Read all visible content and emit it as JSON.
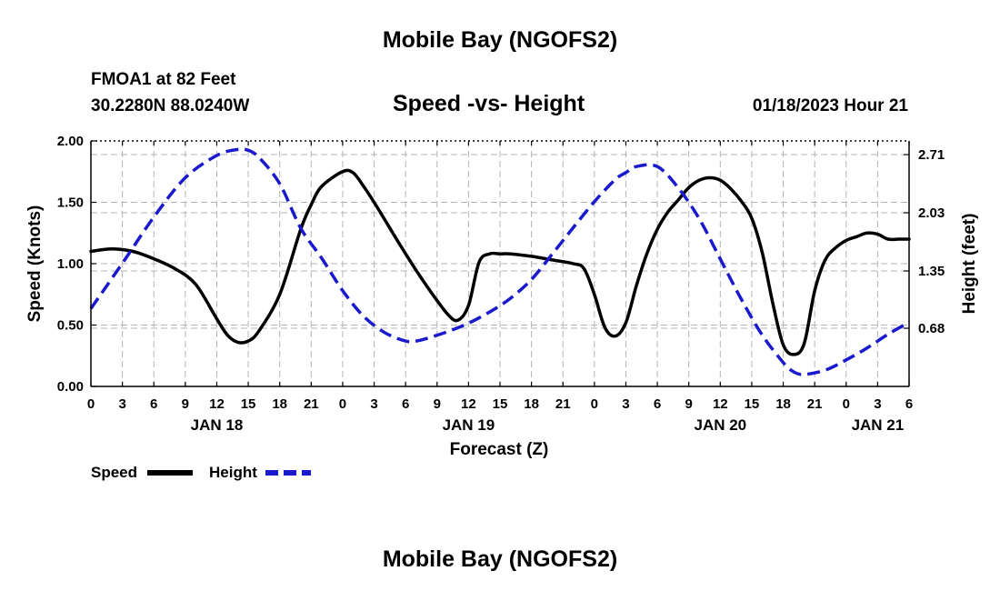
{
  "page_title": "Mobile Bay (NGOFS2)",
  "footer_title": "Mobile Bay (NGOFS2)",
  "station": "FMOA1 at 82 Feet",
  "coordinates": "30.2280N  88.0240W",
  "issued": "01/18/2023 Hour 21",
  "colors": {
    "speed": "#000000",
    "height": "#1a1acc",
    "grid": "#b4b4b4"
  },
  "chart_data": {
    "type": "line",
    "title": "Speed -vs- Height",
    "xlabel": "Forecast (Z)",
    "ylabel_left": "Speed (Knots)",
    "ylabel_right": "Height (feet)",
    "x_range": [
      0,
      78
    ],
    "x_tick_step": 3,
    "x_tick_labels": [
      "0",
      "3",
      "6",
      "9",
      "12",
      "15",
      "18",
      "21",
      "0",
      "3",
      "6",
      "9",
      "12",
      "15",
      "18",
      "21",
      "0",
      "3",
      "6",
      "9",
      "12",
      "15",
      "18",
      "21",
      "0",
      "3",
      "6"
    ],
    "date_labels": [
      {
        "label": "JAN 18",
        "hour": 12
      },
      {
        "label": "JAN 19",
        "hour": 36
      },
      {
        "label": "JAN 20",
        "hour": 60
      },
      {
        "label": "JAN 21",
        "hour": 75
      }
    ],
    "y_left": {
      "range": [
        0,
        2.0
      ],
      "ticks": [
        "0.00",
        "0.50",
        "1.00",
        "1.50",
        "2.00"
      ]
    },
    "y_right": {
      "range": [
        0.0,
        2.87
      ],
      "ticks": [
        "0.68",
        "1.35",
        "2.03",
        "2.71"
      ]
    },
    "series": [
      {
        "name": "Speed",
        "axis": "left",
        "style": "solid",
        "x": [
          0,
          2,
          4,
          6,
          8,
          10,
          12,
          13,
          14,
          15,
          16,
          18,
          20,
          21,
          22,
          24,
          25,
          26,
          27,
          28,
          30,
          32,
          34,
          35,
          36,
          37,
          38,
          39,
          40,
          42,
          44,
          46,
          47,
          48,
          49,
          50,
          51,
          52,
          53,
          54,
          55,
          56,
          57,
          58,
          59,
          60,
          61,
          62,
          63,
          64,
          65,
          66,
          67,
          68,
          69,
          70,
          71,
          72,
          73,
          74,
          75,
          76,
          77,
          78
        ],
        "values": [
          1.1,
          1.12,
          1.1,
          1.04,
          0.96,
          0.83,
          0.55,
          0.42,
          0.36,
          0.37,
          0.45,
          0.75,
          1.28,
          1.48,
          1.63,
          1.75,
          1.74,
          1.63,
          1.5,
          1.36,
          1.08,
          0.82,
          0.59,
          0.54,
          0.66,
          1.01,
          1.08,
          1.08,
          1.08,
          1.06,
          1.03,
          1.0,
          0.96,
          0.75,
          0.48,
          0.41,
          0.52,
          0.82,
          1.08,
          1.28,
          1.42,
          1.52,
          1.62,
          1.68,
          1.7,
          1.68,
          1.61,
          1.51,
          1.37,
          1.09,
          0.68,
          0.34,
          0.26,
          0.35,
          0.78,
          1.03,
          1.13,
          1.19,
          1.22,
          1.25,
          1.24,
          1.2,
          1.2,
          1.2
        ]
      },
      {
        "name": "Height",
        "axis": "right",
        "style": "dashed",
        "x": [
          0,
          3,
          6,
          9,
          12,
          14,
          15,
          16,
          18,
          20,
          22,
          24,
          26,
          28,
          30,
          31,
          32,
          34,
          36,
          38,
          40,
          42,
          44,
          46,
          48,
          50,
          51,
          52,
          54,
          56,
          58,
          60,
          62,
          64,
          66,
          67,
          68,
          70,
          72,
          74,
          76,
          78
        ],
        "values": [
          0.91,
          1.44,
          1.98,
          2.44,
          2.7,
          2.77,
          2.76,
          2.68,
          2.37,
          1.85,
          1.5,
          1.12,
          0.82,
          0.63,
          0.53,
          0.53,
          0.56,
          0.64,
          0.74,
          0.87,
          1.03,
          1.25,
          1.55,
          1.86,
          2.16,
          2.42,
          2.5,
          2.57,
          2.57,
          2.32,
          1.96,
          1.49,
          1.02,
          0.6,
          0.28,
          0.17,
          0.14,
          0.19,
          0.31,
          0.45,
          0.61,
          0.75
        ]
      }
    ],
    "legend": [
      "Speed",
      "Height"
    ]
  }
}
